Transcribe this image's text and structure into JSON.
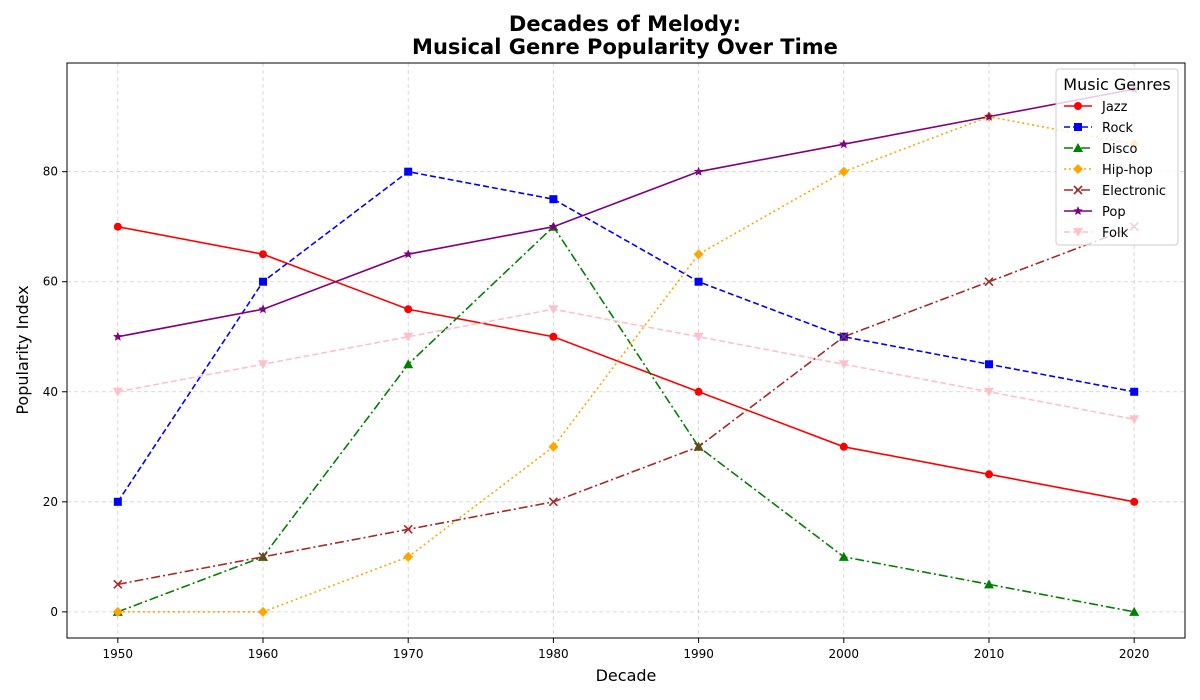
{
  "chart_data": {
    "type": "line",
    "title_line1": "Decades of Melody:",
    "title_line2": "Musical Genre Popularity Over Time",
    "xlabel": "Decade",
    "ylabel": "Popularity Index",
    "x": [
      1950,
      1960,
      1970,
      1980,
      1990,
      2000,
      2010,
      2020
    ],
    "xlim": [
      1946.5,
      2023.5
    ],
    "ylim": [
      -4.75,
      99.75
    ],
    "yticks": [
      0,
      20,
      40,
      60,
      80
    ],
    "grid": true,
    "legend_title": "Music Genres",
    "legend_position": "top-right",
    "series": [
      {
        "name": "Jazz",
        "color": "#ff0000",
        "marker": "circle",
        "linestyle": "solid",
        "values": [
          70,
          65,
          55,
          50,
          40,
          30,
          25,
          20
        ]
      },
      {
        "name": "Rock",
        "color": "#0000ff",
        "marker": "square",
        "linestyle": "dashed",
        "values": [
          20,
          60,
          80,
          75,
          60,
          50,
          45,
          40
        ]
      },
      {
        "name": "Disco",
        "color": "#008000",
        "marker": "triangle",
        "linestyle": "dashdot",
        "values": [
          0,
          10,
          45,
          70,
          30,
          10,
          5,
          0
        ]
      },
      {
        "name": "Hip-hop",
        "color": "#ffa500",
        "marker": "diamond",
        "linestyle": "dotted",
        "values": [
          0,
          0,
          10,
          30,
          65,
          80,
          90,
          85
        ]
      },
      {
        "name": "Electronic",
        "color": "#a52a2a",
        "marker": "x",
        "linestyle": "dashdot",
        "values": [
          5,
          10,
          15,
          20,
          30,
          50,
          60,
          70
        ]
      },
      {
        "name": "Pop",
        "color": "#800080",
        "marker": "star",
        "linestyle": "solid",
        "values": [
          50,
          55,
          65,
          70,
          80,
          85,
          90,
          95
        ]
      },
      {
        "name": "Folk",
        "color": "#ffc0cb",
        "marker": "triangle-down",
        "linestyle": "dashed",
        "values": [
          40,
          45,
          50,
          55,
          50,
          45,
          40,
          35
        ]
      }
    ]
  }
}
